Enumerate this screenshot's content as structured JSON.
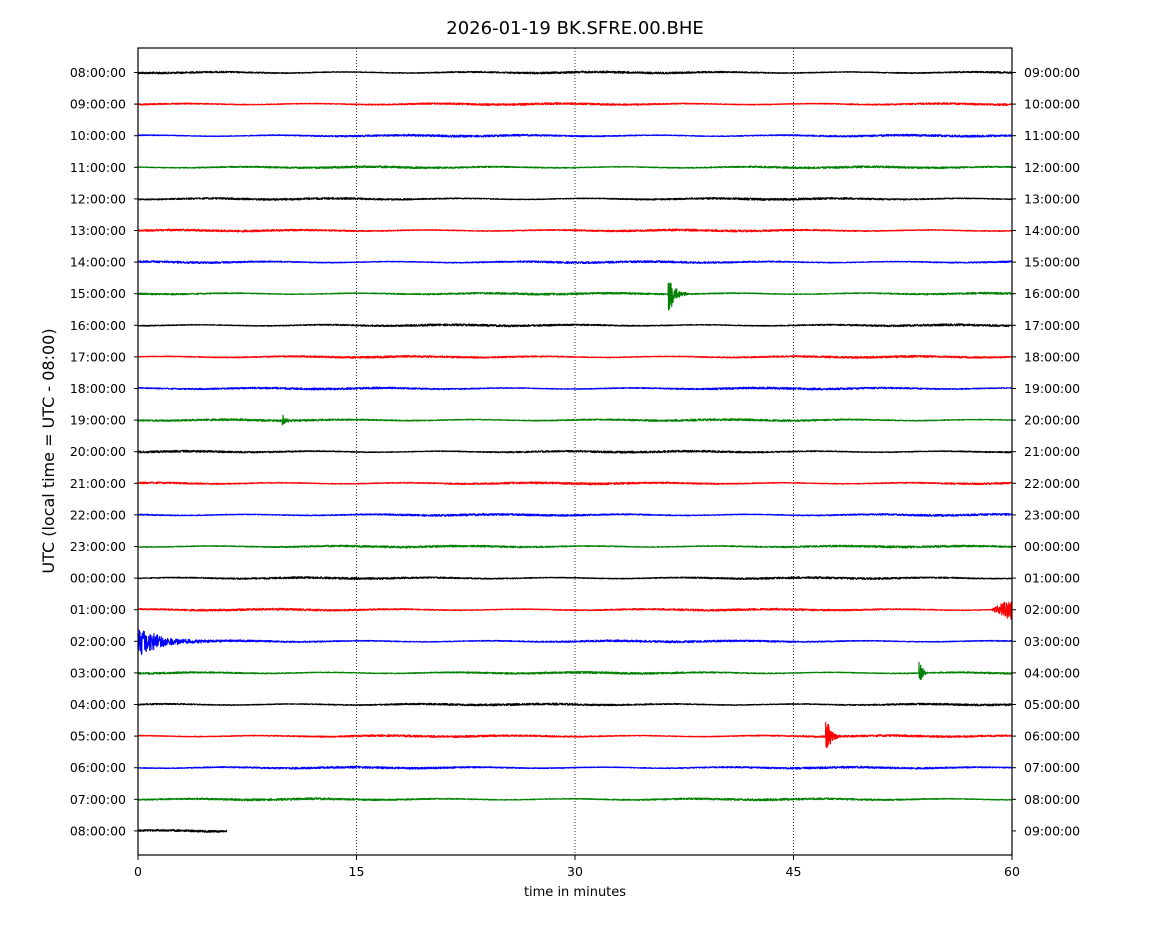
{
  "chart_data": {
    "type": "line",
    "title": "2026-01-19 BK.SFRE.00.BHE",
    "xlabel": "time in minutes",
    "ylabel": "UTC (local time = UTC - 08:00)",
    "xlim": [
      0,
      60
    ],
    "x_ticks": [
      "0",
      "15",
      "30",
      "45",
      "60"
    ],
    "x_tick_values": [
      0,
      15,
      30,
      45,
      60
    ],
    "vertical_gridlines_at": [
      15,
      30,
      45
    ],
    "grid": "dotted vertical lines",
    "trace_colors": [
      "#000000",
      "#ff0000",
      "#0000ff",
      "#008000"
    ],
    "left_labels": [
      "08:00:00",
      "09:00:00",
      "10:00:00",
      "11:00:00",
      "12:00:00",
      "13:00:00",
      "14:00:00",
      "15:00:00",
      "16:00:00",
      "17:00:00",
      "18:00:00",
      "19:00:00",
      "20:00:00",
      "21:00:00",
      "22:00:00",
      "23:00:00",
      "00:00:00",
      "01:00:00",
      "02:00:00",
      "03:00:00",
      "04:00:00",
      "05:00:00",
      "06:00:00",
      "07:00:00",
      "08:00:00"
    ],
    "right_labels": [
      "09:00:00",
      "10:00:00",
      "11:00:00",
      "12:00:00",
      "13:00:00",
      "14:00:00",
      "15:00:00",
      "16:00:00",
      "17:00:00",
      "18:00:00",
      "19:00:00",
      "20:00:00",
      "21:00:00",
      "22:00:00",
      "23:00:00",
      "00:00:00",
      "01:00:00",
      "02:00:00",
      "03:00:00",
      "04:00:00",
      "05:00:00",
      "06:00:00",
      "07:00:00",
      "08:00:00",
      "09:00:00"
    ],
    "last_trace_end_minute": 6.1,
    "events": [
      {
        "row": 7,
        "minute": 36.5,
        "amplitude": 0.55,
        "duration": 1.2,
        "kind": "burst"
      },
      {
        "row": 11,
        "minute": 10.0,
        "amplitude": 0.18,
        "duration": 0.5,
        "kind": "burst"
      },
      {
        "row": 17,
        "minute": 58.5,
        "amplitude": 0.35,
        "duration": 1.5,
        "kind": "ramp"
      },
      {
        "row": 18,
        "minute": 0.0,
        "amplitude": 0.5,
        "duration": 6.0,
        "kind": "coda"
      },
      {
        "row": 19,
        "minute": 53.7,
        "amplitude": 0.35,
        "duration": 0.6,
        "kind": "burst"
      },
      {
        "row": 21,
        "minute": 47.3,
        "amplitude": 0.5,
        "duration": 1.0,
        "kind": "burst"
      }
    ]
  }
}
